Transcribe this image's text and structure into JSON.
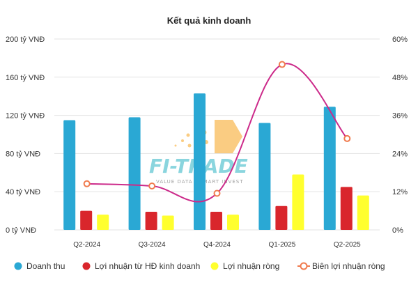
{
  "chart_data": {
    "type": "bar",
    "title": "Kết quả kinh doanh",
    "categories": [
      "Q2-2024",
      "Q3-2024",
      "Q4-2024",
      "Q1-2025",
      "Q2-2025"
    ],
    "series": [
      {
        "name": "Doanh thu",
        "kind": "bar",
        "axis": "left",
        "color": "#2aa8d4",
        "values": [
          115,
          118,
          143,
          112,
          129
        ]
      },
      {
        "name": "Lợi nhuận từ HĐ kinh doanh",
        "kind": "bar",
        "axis": "left",
        "color": "#d9262c",
        "values": [
          20,
          19,
          19,
          25,
          45
        ]
      },
      {
        "name": "Lợi nhuận ròng",
        "kind": "bar",
        "axis": "left",
        "color": "#ffff2e",
        "values": [
          16,
          15,
          16,
          58,
          36
        ]
      },
      {
        "name": "Biên lợi nhuận ròng",
        "kind": "line",
        "axis": "right",
        "color": "#cc2a8a",
        "marker_color": "#f07b4e",
        "values": [
          14.5,
          13.8,
          11.5,
          52.0,
          28.7
        ]
      }
    ],
    "y_left": {
      "ylim": [
        0,
        200
      ],
      "ticks": [
        0,
        40,
        80,
        120,
        160,
        200
      ],
      "tick_labels": [
        "0 tỷ VNĐ",
        "40 tỷ VNĐ",
        "80 tỷ VNĐ",
        "120 tỷ VNĐ",
        "160 tỷ VNĐ",
        "200 tỷ VNĐ"
      ]
    },
    "y_right": {
      "ylim": [
        0,
        60
      ],
      "ticks": [
        0,
        12,
        24,
        36,
        48,
        60
      ],
      "tick_labels": [
        "0%",
        "12%",
        "24%",
        "36%",
        "48%",
        "60%"
      ]
    },
    "grid": true,
    "legend_position": "bottom"
  },
  "watermark": {
    "brand": "FI-TRADE",
    "tagline": "VALUE DATA · SMART INVEST"
  }
}
